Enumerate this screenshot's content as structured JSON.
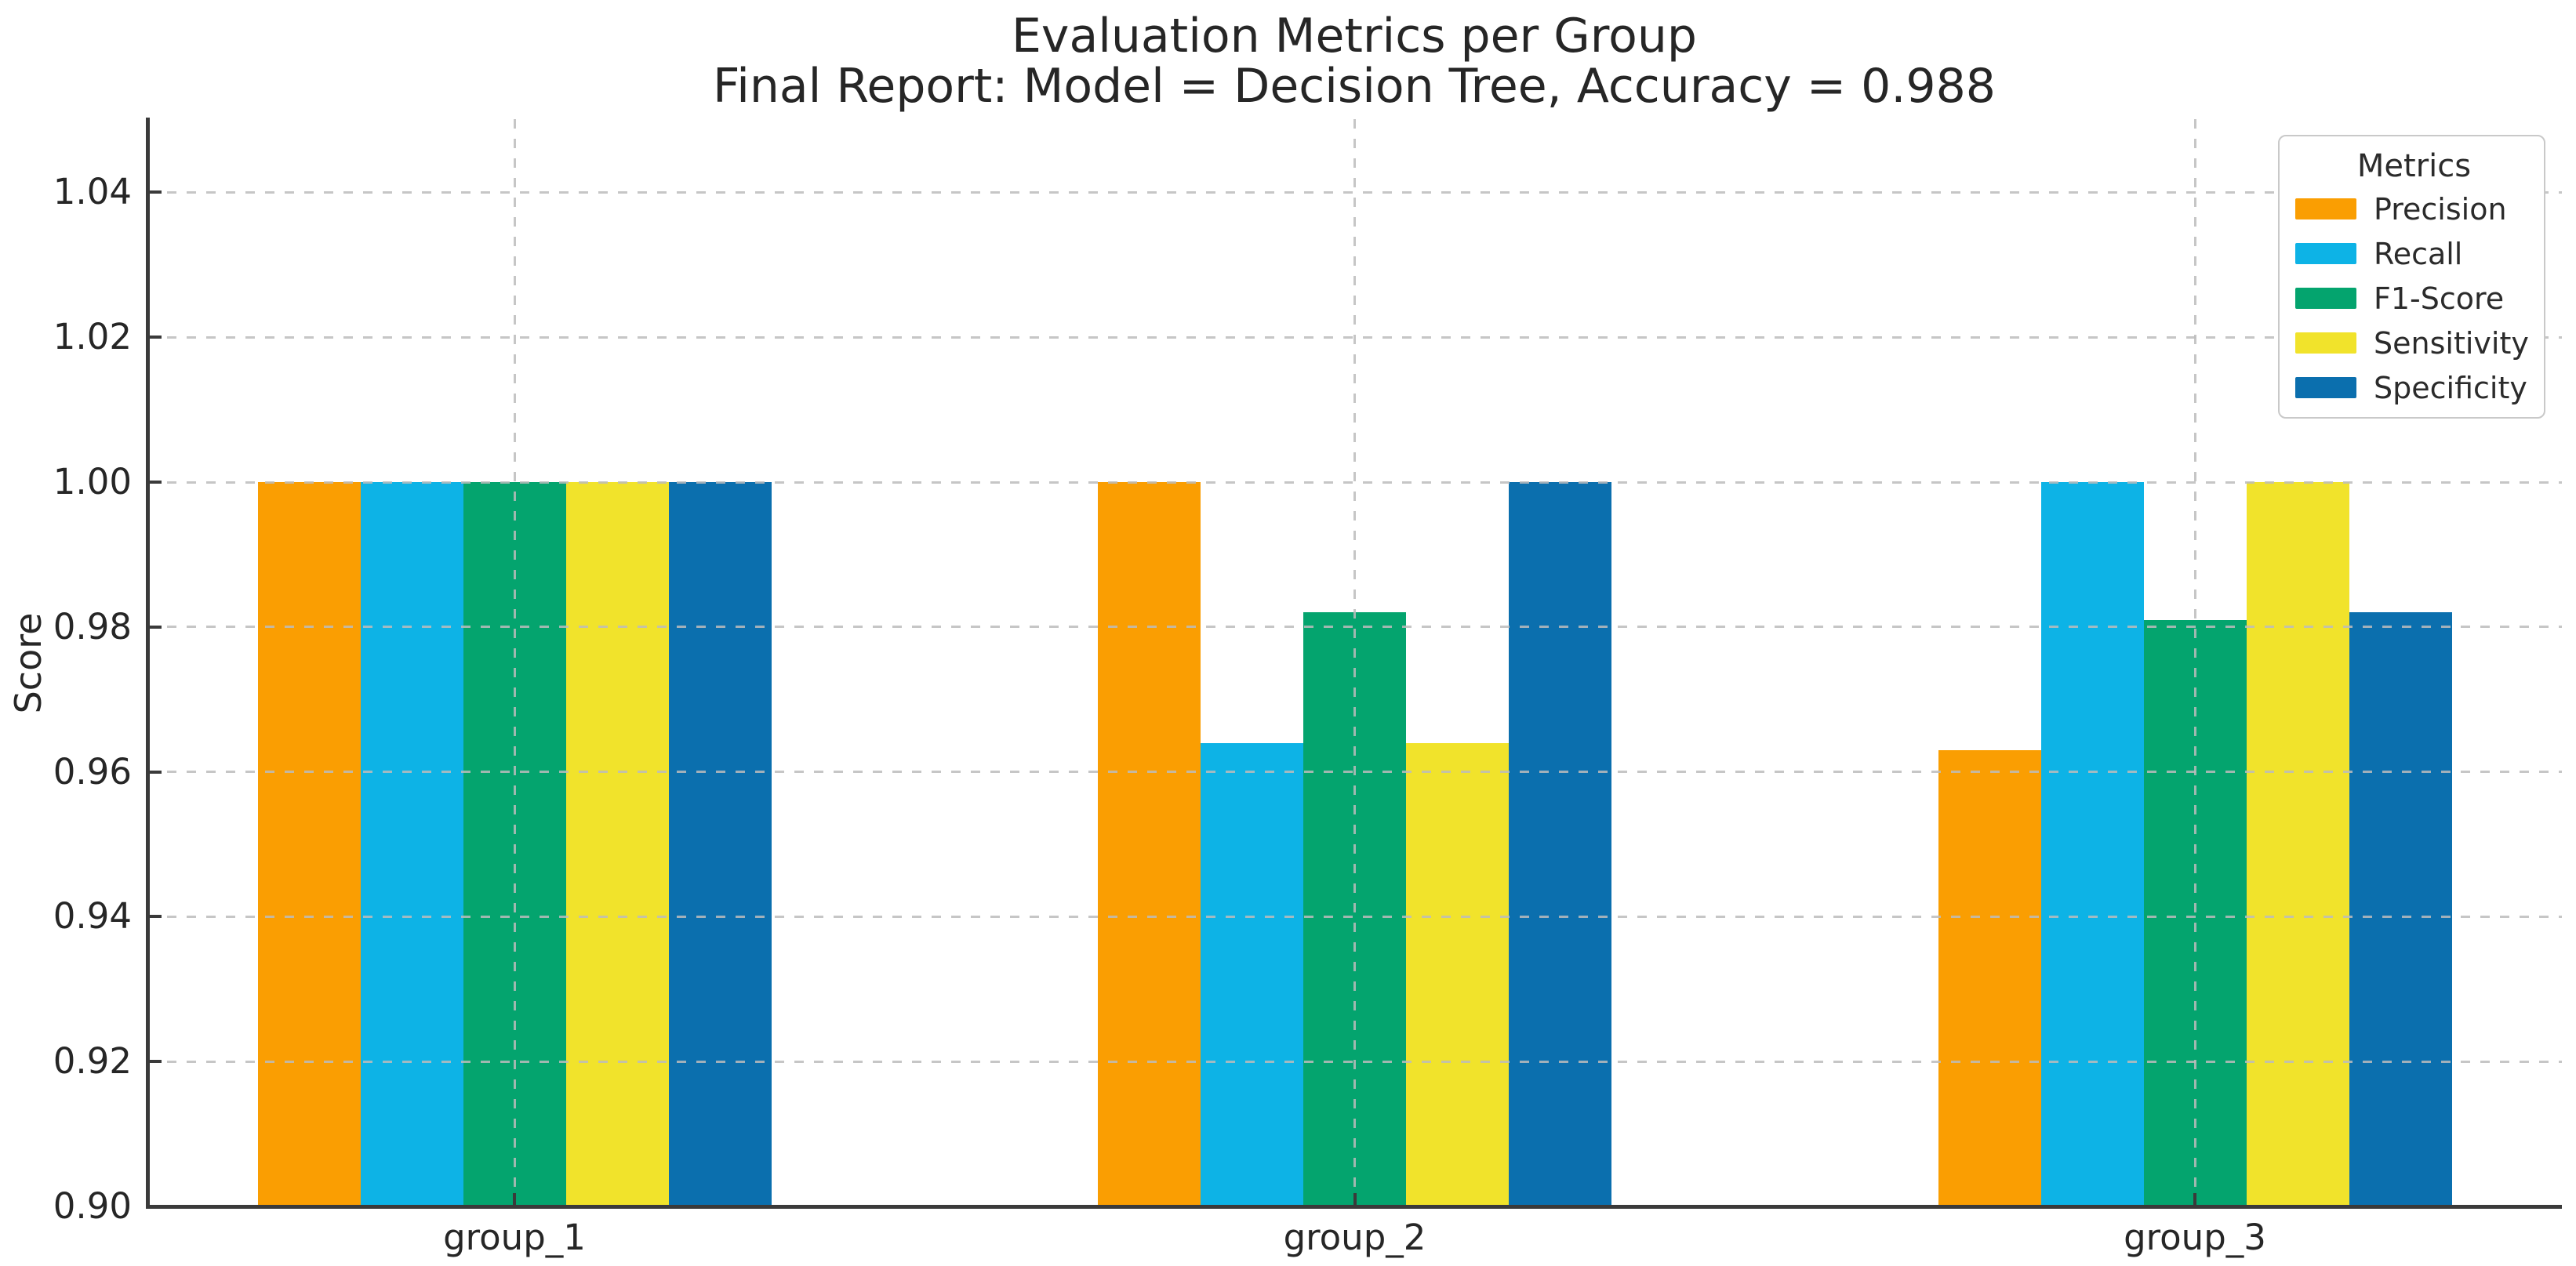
{
  "title": "Evaluation Metrics per Group",
  "subtitle": "Final Report: Model = Decision Tree, Accuracy = 0.988",
  "chart_data": {
    "type": "bar",
    "title": "Evaluation Metrics per Group",
    "subtitle": "Final Report: Model = Decision Tree, Accuracy = 0.988",
    "xlabel": "",
    "ylabel": "Score",
    "ylim": [
      0.9,
      1.05
    ],
    "yticks": [
      0.9,
      0.92,
      0.94,
      0.96,
      0.98,
      1.0,
      1.02,
      1.04
    ],
    "categories": [
      "group_1",
      "group_2",
      "group_3"
    ],
    "series": [
      {
        "name": "Precision",
        "color": "#FA9E02",
        "values": [
          1.0,
          1.0,
          0.963
        ]
      },
      {
        "name": "Recall",
        "color": "#0DB3E6",
        "values": [
          1.0,
          0.964,
          1.0
        ]
      },
      {
        "name": "F1-Score",
        "color": "#04A46E",
        "values": [
          1.0,
          0.982,
          0.981
        ]
      },
      {
        "name": "Sensitivity",
        "color": "#F1E32B",
        "values": [
          1.0,
          0.964,
          1.0
        ]
      },
      {
        "name": "Specificity",
        "color": "#0B6FAE",
        "values": [
          1.0,
          1.0,
          0.982
        ]
      }
    ],
    "legend": {
      "title": "Metrics",
      "position": "upper right"
    },
    "grid": {
      "x": true,
      "y": true,
      "style": "dashed"
    }
  }
}
